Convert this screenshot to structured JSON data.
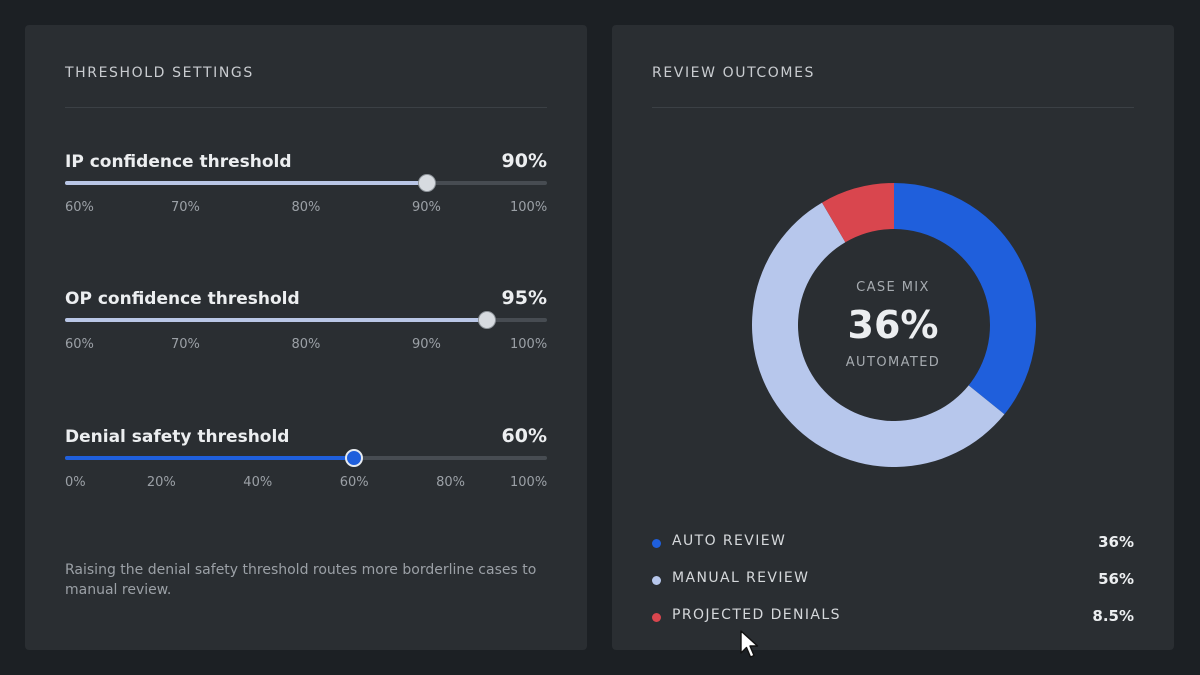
{
  "threshold_settings": {
    "title": "THRESHOLD SETTINGS",
    "sliders": [
      {
        "label": "IP confidence threshold",
        "value_text": "90%",
        "level": 0.75,
        "style": "light",
        "ticks": [
          "60%",
          "70%",
          "80%",
          "90%",
          "100%"
        ]
      },
      {
        "label": "OP confidence threshold",
        "value_text": "95%",
        "level": 0.875,
        "style": "light",
        "ticks": [
          "60%",
          "70%",
          "80%",
          "90%",
          "100%"
        ]
      },
      {
        "label": "Denial safety threshold",
        "value_text": "60%",
        "level": 0.6,
        "style": "blue",
        "ticks": [
          "0%",
          "20%",
          "40%",
          "60%",
          "80%",
          "100%"
        ]
      }
    ],
    "help_text": "Raising the denial safety threshold routes more borderline cases to manual review."
  },
  "review_outcomes": {
    "title": "REVIEW OUTCOMES",
    "center": {
      "caption_top": "CASE MIX",
      "value": "36%",
      "caption_bottom": "AUTOMATED"
    },
    "legend": [
      {
        "label": "AUTO REVIEW",
        "value_text": "36%",
        "color": "#1f5fdc"
      },
      {
        "label": "MANUAL REVIEW",
        "value_text": "56%",
        "color": "#b7c7ec"
      },
      {
        "label": "PROJECTED DENIALS",
        "value_text": "8.5%",
        "color": "#d9464e"
      }
    ]
  },
  "chart_data": {
    "type": "pie",
    "categories": [
      "AUTO REVIEW",
      "MANUAL REVIEW",
      "PROJECTED DENIALS"
    ],
    "values": [
      36,
      56,
      8.5
    ],
    "colors": [
      "#1f5fdc",
      "#b7c7ec",
      "#d9464e"
    ],
    "start": "top",
    "direction": "clockwise"
  }
}
